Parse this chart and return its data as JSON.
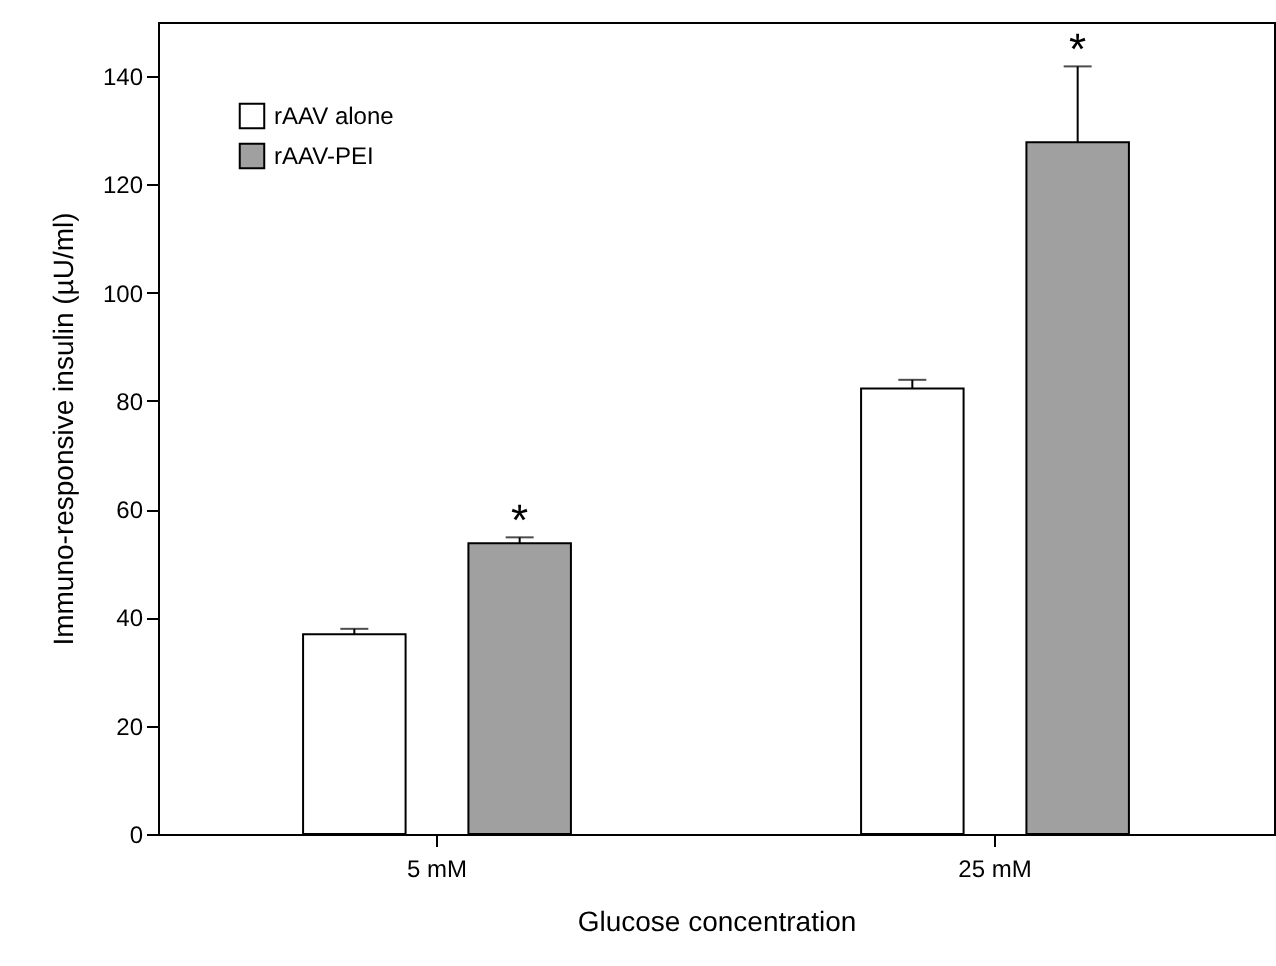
{
  "chart_data": {
    "type": "bar",
    "xlabel": "Glucose concentration",
    "ylabel": "Immuno-responsive insulin (µU/ml)",
    "categories": [
      "5 mM",
      "25 mM"
    ],
    "series": [
      {
        "name": "rAAV alone",
        "color": "#ffffff",
        "values": [
          36.9,
          82.3
        ],
        "errors": [
          1.0,
          1.6
        ]
      },
      {
        "name": "rAAV-PEI",
        "color": "#a0a0a0",
        "values": [
          53.7,
          127.8
        ],
        "errors": [
          1.1,
          14.0
        ]
      }
    ],
    "ylim": [
      0,
      150
    ],
    "yticks": [
      0,
      20,
      40,
      60,
      80,
      100,
      120,
      140
    ],
    "grid": false,
    "legend": "top left",
    "annotations": [
      "*",
      "*"
    ]
  }
}
